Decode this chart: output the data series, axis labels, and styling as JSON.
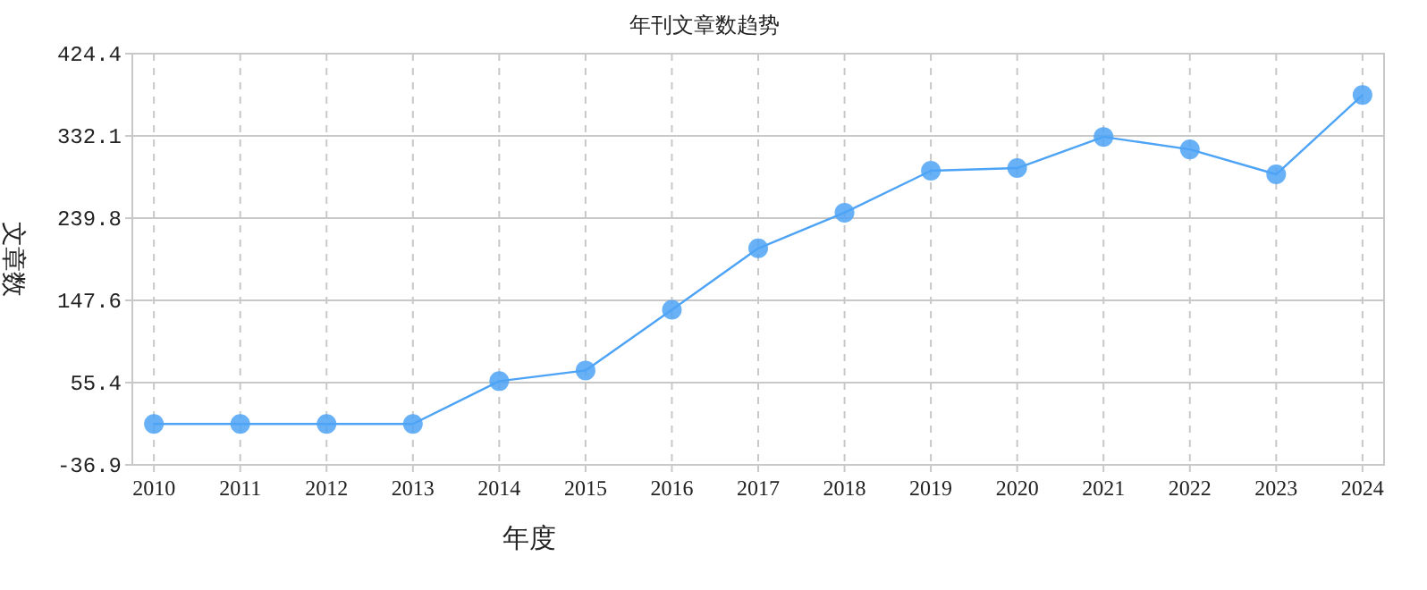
{
  "chart_data": {
    "type": "line",
    "title": "年刊文章数趋势",
    "xlabel": "年度",
    "ylabel": "文章数",
    "categories": [
      "2010",
      "2011",
      "2012",
      "2013",
      "2014",
      "2015",
      "2016",
      "2017",
      "2018",
      "2019",
      "2020",
      "2021",
      "2022",
      "2023",
      "2024"
    ],
    "series": [
      {
        "color": "#4da3f5",
        "values": [
          9,
          9,
          9,
          9,
          57,
          69,
          137,
          206,
          246,
          293,
          296,
          331,
          317,
          289,
          378
        ]
      }
    ],
    "ylim": [
      -36.9,
      424.4
    ],
    "yticks": [
      -36.9,
      55.4,
      147.6,
      239.8,
      332.1,
      424.4
    ],
    "grid": true,
    "marker": "circle",
    "line_style": "solid"
  }
}
